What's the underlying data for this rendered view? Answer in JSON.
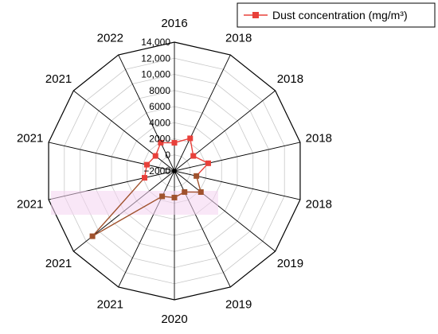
{
  "chart_data": {
    "type": "radar",
    "categories": [
      "2016",
      "2018",
      "2018",
      "2018",
      "2018",
      "2019",
      "2019",
      "2020",
      "2021",
      "2021",
      "2021",
      "2021",
      "2021",
      "2022"
    ],
    "series": [
      {
        "name": "Dust concentration (mg/m³)",
        "color": "#e8403a",
        "values": [
          1500,
          2500,
          1000,
          2300,
          800,
          2200,
          900,
          1300,
          1500,
          11000,
          1800,
          1500,
          1000,
          1900
        ]
      }
    ],
    "r_axis": {
      "min": -2000,
      "max": 14000,
      "step": 2000,
      "tick_labels": [
        "−2000",
        "0",
        "2000",
        "4000",
        "6000",
        "8000",
        "10,000",
        "12,000",
        "14,000"
      ]
    },
    "grid": true,
    "legend_position": "top-right",
    "highlight_color": "#f4d4f0",
    "line_color_below_zero_band": "#a0522d"
  }
}
